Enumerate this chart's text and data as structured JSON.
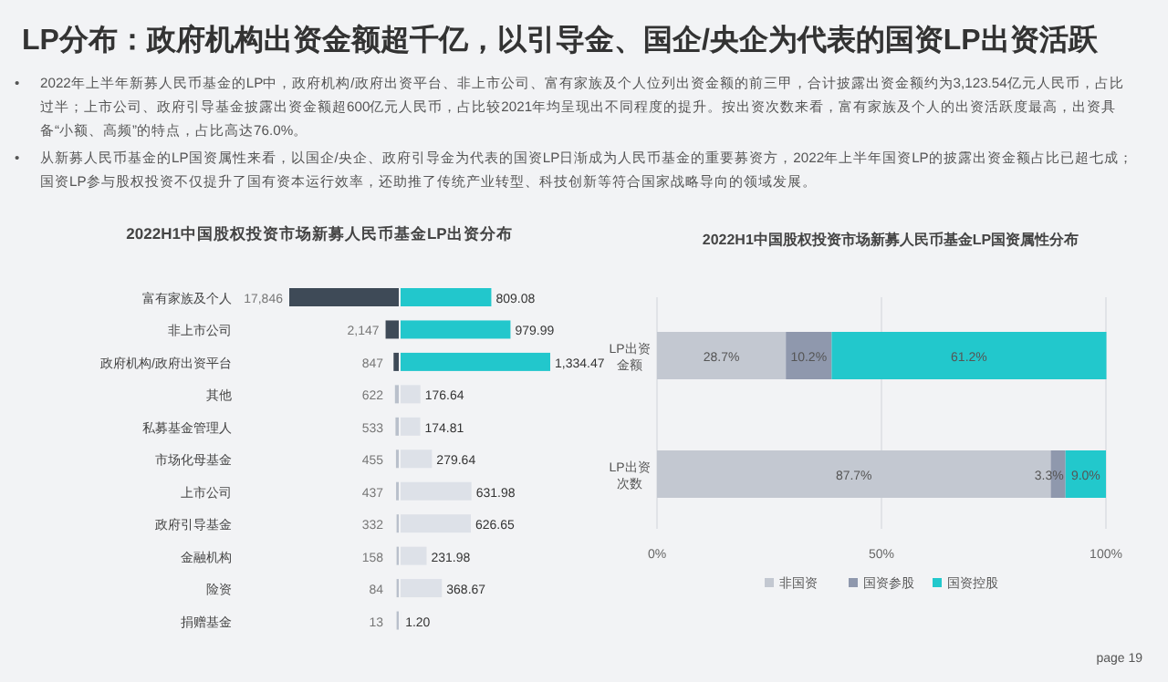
{
  "chart_data": [
    {
      "type": "other",
      "title": "LP分布：政府机构出资金额超千亿，以引导金、国企/央企为代表的国资LP出资活跃",
      "annotations": [
        "• 2022年上半年新募人民币基金的LP中，政府机构/政府出资平台、非上市公司、富有家族及个人位列出资金额的前三甲，合计披露出资金额约为3,123.54亿元人民币，占比过半；上市公司、政府引导基金披露出资金额超600亿元人民币，占比较2021年均呈现出不同程度的提升。按出资次数来看，富有家族及个人的出资活跃度最高，出资具备“小额、高频”的特点，占比高达76.0%。",
        "• 从新募人民币基金的LP国资属性来看，以国企/央企、政府引导金为代表的国资LP日渐成为人民币基金的重要募资方，2022年上半年国资LP的披露出资金额占比已超七成；国资LP参与股权投资不仅提升了国有资本运行效率，还助推了传统产业转型、科技创新等符合国家战略导向的领域发展。",
        "page 19"
      ]
    },
    {
      "type": "bar",
      "orientation": "horizontal",
      "title": "2022H1中国股权投资市场新募人民币基金LP出资分布",
      "categories": [
        "富有家族及个人",
        "非上市公司",
        "政府机构/政府出资平台",
        "其他",
        "私募基金管理人",
        "市场化母基金",
        "上市公司",
        "政府引导基金",
        "金融机构",
        "险资",
        "捐赠基金"
      ],
      "colors": [
        "#3e4a57",
        "#3e4a57",
        "#3e4a57",
        "#b9c0cb",
        "#b9c0cb",
        "#b9c0cb",
        "#b9c0cb",
        "#b9c0cb",
        "#b9c0cb",
        "#b9c0cb",
        "#b9c0cb"
      ],
      "values": [
        17846,
        2147,
        847,
        622,
        533,
        455,
        437,
        332,
        158,
        84,
        13
      ],
      "value_labels": [
        "17,846",
        "2,147",
        "847",
        "622",
        "533",
        "455",
        "437",
        "332",
        "158",
        "84",
        "13"
      ]
    },
    {
      "type": "bar",
      "orientation": "horizontal",
      "tick_labels": false,
      "categories": [
        "富有家族及个人",
        "非上市公司",
        "政府机构/政府出资平台",
        "其他",
        "私募基金管理人",
        "市场化母基金",
        "上市公司",
        "政府引导基金",
        "金融机构",
        "险资",
        "捐赠基金"
      ],
      "colors": [
        "#22c7cc",
        "#22c7cc",
        "#22c7cc",
        "#dde1e8",
        "#dde1e8",
        "#dde1e8",
        "#dde1e8",
        "#dde1e8",
        "#dde1e8",
        "#dde1e8",
        "#dde1e8"
      ],
      "values": [
        809.08,
        979.99,
        1334.47,
        176.64,
        174.81,
        279.64,
        631.98,
        626.65,
        231.98,
        368.67,
        1.2
      ],
      "value_labels": [
        "809.08",
        "979.99",
        "1,334.47",
        "176.64",
        "174.81",
        "279.64",
        "631.98",
        "626.65",
        "231.98",
        "368.67",
        "1.20"
      ]
    },
    {
      "type": "bar",
      "orientation": "horizontal",
      "stacked": true,
      "title": "2022H1中国股权投资市场新募人民币基金LP国资属性分布",
      "categories": [
        "LP出资金额",
        "LP出资次数"
      ],
      "xlim": [
        0,
        100
      ],
      "xticks": [
        {
          "value": 0,
          "label": "0%"
        },
        {
          "value": 50,
          "label": "50%"
        },
        {
          "value": 100,
          "label": "100%"
        }
      ],
      "grid": "x",
      "legend": "bottom",
      "series": [
        {
          "name": "非国资",
          "color": "#c3c8d1",
          "values": [
            28.7,
            87.7
          ],
          "value_labels": [
            "28.7%",
            "87.7%"
          ]
        },
        {
          "name": "国资参股",
          "color": "#8f98ad",
          "values": [
            10.2,
            3.3
          ],
          "value_labels": [
            "10.2%",
            "3.3%"
          ]
        },
        {
          "name": "国资控股",
          "color": "#22c8cc",
          "values": [
            61.2,
            9.0
          ],
          "value_labels": [
            "61.2%",
            "9.0%"
          ]
        }
      ]
    }
  ]
}
